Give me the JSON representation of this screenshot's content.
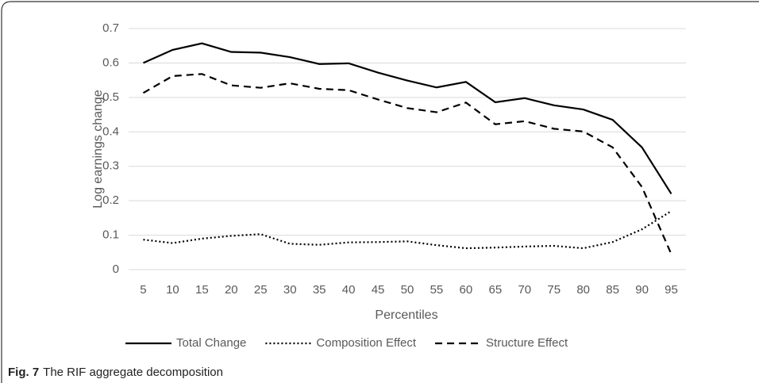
{
  "chart_data": {
    "type": "line",
    "x_label": "Percentiles",
    "y_label": "Log earnings change",
    "categories": [
      "5",
      "10",
      "15",
      "20",
      "25",
      "30",
      "35",
      "40",
      "45",
      "50",
      "55",
      "60",
      "65",
      "70",
      "75",
      "80",
      "85",
      "90",
      "95"
    ],
    "series": [
      {
        "name": "Total Change",
        "color": "#000000",
        "dash": "solid",
        "values": [
          0.6,
          0.638,
          0.657,
          0.632,
          0.63,
          0.617,
          0.597,
          0.599,
          0.572,
          0.549,
          0.529,
          0.545,
          0.486,
          0.498,
          0.477,
          0.465,
          0.435,
          0.355,
          0.22
        ]
      },
      {
        "name": "Composition Effect",
        "color": "#000000",
        "dash": "dotted",
        "values": [
          0.087,
          0.077,
          0.09,
          0.098,
          0.103,
          0.075,
          0.072,
          0.079,
          0.08,
          0.082,
          0.071,
          0.062,
          0.064,
          0.067,
          0.069,
          0.062,
          0.08,
          0.117,
          0.17
        ]
      },
      {
        "name": "Structure Effect",
        "color": "#000000",
        "dash": "dashed",
        "values": [
          0.513,
          0.562,
          0.568,
          0.535,
          0.528,
          0.541,
          0.525,
          0.521,
          0.494,
          0.469,
          0.457,
          0.485,
          0.422,
          0.431,
          0.409,
          0.401,
          0.355,
          0.24,
          0.045
        ]
      }
    ],
    "ylim": [
      0,
      0.7
    ],
    "yticks": [
      0,
      0.1,
      0.2,
      0.3,
      0.4,
      0.5,
      0.6,
      0.7
    ],
    "grid": true,
    "legend": "bottom"
  },
  "caption": {
    "label": "Fig. 7",
    "text": "The RIF aggregate decomposition"
  }
}
